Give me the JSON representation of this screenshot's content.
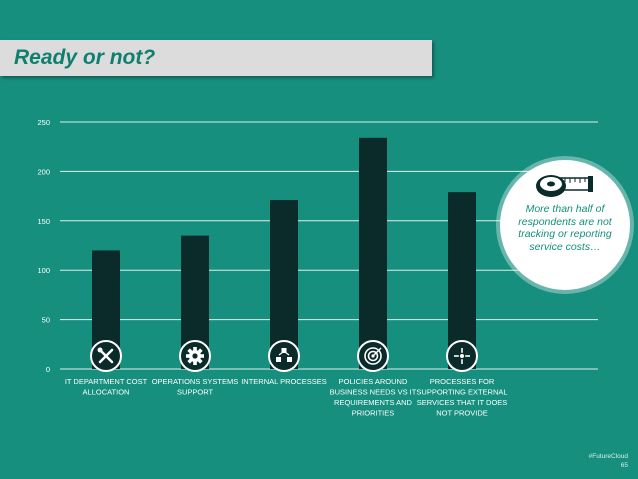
{
  "slide": {
    "title": "Ready or not?",
    "hashtag": "#FutureCloud",
    "page_number": "65"
  },
  "callout": {
    "text": "More than half of respondents are not tracking or reporting service costs…",
    "icon": "tape-measure-icon"
  },
  "colors": {
    "background": "#178f7e",
    "bar": "#0b2a2a",
    "icon_circle": "#0b2a2a",
    "grid": "#ffffff",
    "title_text": "#0f8070",
    "title_banner": "#dcdcdc"
  },
  "chart_data": {
    "type": "bar",
    "categories": [
      [
        "IT DEPARTMENT COST",
        "ALLOCATION"
      ],
      [
        "OPERATIONS SYSTEMS",
        "SUPPORT"
      ],
      [
        "INTERNAL PROCESSES"
      ],
      [
        "POLICIES AROUND",
        "BUSINESS NEEDS VS IT",
        "REQUIREMENTS AND",
        "PRIORITIES"
      ],
      [
        "PROCESSES FOR",
        "SUPPORTING EXTERNAL",
        "SERVICES THAT IT DOES",
        "NOT PROVIDE"
      ]
    ],
    "values": [
      120,
      135,
      171,
      234,
      179
    ],
    "icons": [
      "tools-icon",
      "gear-icon",
      "process-flow-icon",
      "target-icon",
      "arrows-out-icon"
    ],
    "ylim": [
      0,
      250
    ],
    "yticks": [
      0,
      50,
      100,
      150,
      200,
      250
    ],
    "grid": true,
    "legend": "none"
  }
}
